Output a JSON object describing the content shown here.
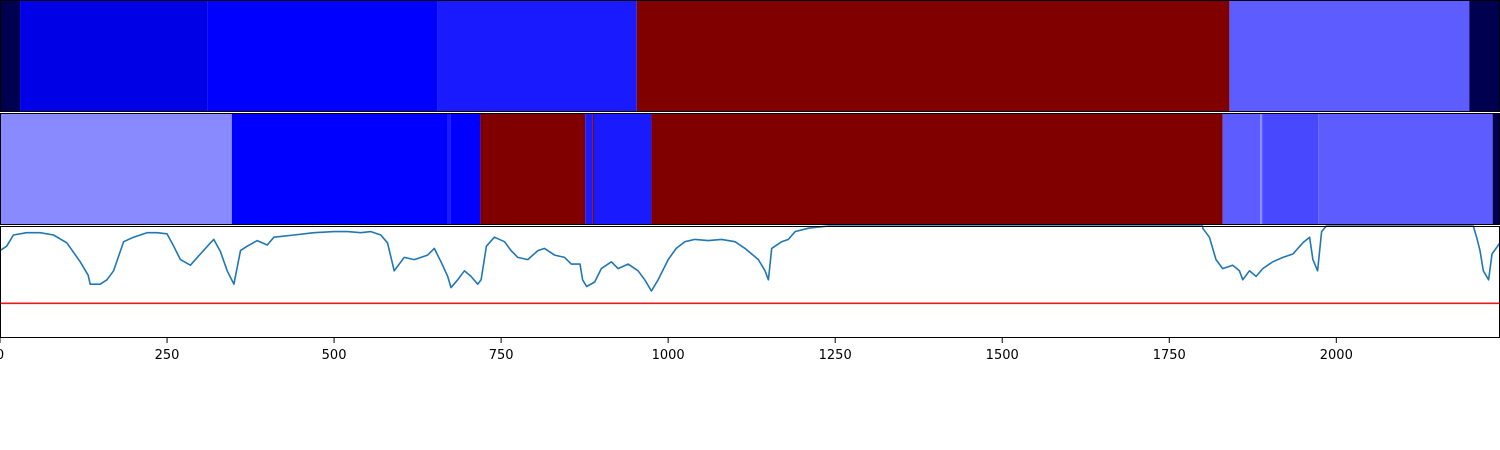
{
  "chart_data": {
    "type": "segmentation-timeline",
    "xlim": [
      0,
      2245
    ],
    "x_ticks": [
      0,
      250,
      500,
      750,
      1000,
      1250,
      1500,
      1750,
      2000
    ],
    "tracks": [
      {
        "segments": [
          {
            "start": 0,
            "end": 30,
            "color": "#000050"
          },
          {
            "start": 30,
            "end": 310,
            "color": "#0000e6"
          },
          {
            "start": 310,
            "end": 655,
            "color": "#0000ff"
          },
          {
            "start": 655,
            "end": 953,
            "color": "#1a1aff"
          },
          {
            "start": 953,
            "end": 1840,
            "color": "#800000"
          },
          {
            "start": 1840,
            "end": 2199,
            "color": "#5c5cff"
          },
          {
            "start": 2199,
            "end": 2245,
            "color": "#000050"
          }
        ]
      },
      {
        "segments": [
          {
            "start": 0,
            "end": 347,
            "color": "#8a8aff"
          },
          {
            "start": 347,
            "end": 669,
            "color": "#0000ff"
          },
          {
            "start": 669,
            "end": 674,
            "color": "#1a1aff"
          },
          {
            "start": 674,
            "end": 719,
            "color": "#0000ff"
          },
          {
            "start": 719,
            "end": 876,
            "color": "#800000"
          },
          {
            "start": 876,
            "end": 887,
            "color": "#1a1aff"
          },
          {
            "start": 887,
            "end": 889,
            "color": "#800000"
          },
          {
            "start": 889,
            "end": 975,
            "color": "#1a1aff"
          },
          {
            "start": 975,
            "end": 1830,
            "color": "#800000"
          },
          {
            "start": 1830,
            "end": 1886,
            "color": "#5c5cff"
          },
          {
            "start": 1886,
            "end": 1889,
            "color": "#8a8aff"
          },
          {
            "start": 1889,
            "end": 1973,
            "color": "#4848ff"
          },
          {
            "start": 1973,
            "end": 2234,
            "color": "#5c5cff"
          },
          {
            "start": 2234,
            "end": 2245,
            "color": "#000050"
          }
        ]
      }
    ],
    "line_panel": {
      "ylim": [
        0,
        1
      ],
      "threshold": 0.31,
      "threshold_color": "#e8191b",
      "line_color": "#1f77b4",
      "series": [
        [
          0,
          0.78
        ],
        [
          10,
          0.82
        ],
        [
          20,
          0.92
        ],
        [
          40,
          0.94
        ],
        [
          60,
          0.94
        ],
        [
          80,
          0.92
        ],
        [
          100,
          0.85
        ],
        [
          120,
          0.68
        ],
        [
          132,
          0.56
        ],
        [
          135,
          0.48
        ],
        [
          150,
          0.48
        ],
        [
          160,
          0.52
        ],
        [
          170,
          0.6
        ],
        [
          185,
          0.86
        ],
        [
          200,
          0.9
        ],
        [
          220,
          0.94
        ],
        [
          235,
          0.94
        ],
        [
          250,
          0.93
        ],
        [
          260,
          0.82
        ],
        [
          270,
          0.7
        ],
        [
          285,
          0.65
        ],
        [
          300,
          0.75
        ],
        [
          315,
          0.85
        ],
        [
          320,
          0.88
        ],
        [
          330,
          0.77
        ],
        [
          340,
          0.6
        ],
        [
          350,
          0.48
        ],
        [
          360,
          0.78
        ],
        [
          370,
          0.82
        ],
        [
          385,
          0.87
        ],
        [
          400,
          0.83
        ],
        [
          410,
          0.9
        ],
        [
          440,
          0.92
        ],
        [
          470,
          0.94
        ],
        [
          500,
          0.95
        ],
        [
          520,
          0.95
        ],
        [
          540,
          0.94
        ],
        [
          555,
          0.95
        ],
        [
          570,
          0.92
        ],
        [
          580,
          0.85
        ],
        [
          590,
          0.6
        ],
        [
          605,
          0.72
        ],
        [
          620,
          0.7
        ],
        [
          640,
          0.74
        ],
        [
          650,
          0.8
        ],
        [
          660,
          0.68
        ],
        [
          670,
          0.55
        ],
        [
          675,
          0.45
        ],
        [
          685,
          0.52
        ],
        [
          695,
          0.6
        ],
        [
          705,
          0.55
        ],
        [
          715,
          0.48
        ],
        [
          720,
          0.52
        ],
        [
          728,
          0.82
        ],
        [
          740,
          0.9
        ],
        [
          755,
          0.86
        ],
        [
          765,
          0.78
        ],
        [
          775,
          0.72
        ],
        [
          790,
          0.7
        ],
        [
          805,
          0.78
        ],
        [
          815,
          0.8
        ],
        [
          830,
          0.74
        ],
        [
          845,
          0.72
        ],
        [
          855,
          0.66
        ],
        [
          868,
          0.66
        ],
        [
          872,
          0.52
        ],
        [
          878,
          0.46
        ],
        [
          890,
          0.5
        ],
        [
          900,
          0.62
        ],
        [
          915,
          0.68
        ],
        [
          925,
          0.62
        ],
        [
          940,
          0.66
        ],
        [
          955,
          0.6
        ],
        [
          965,
          0.52
        ],
        [
          975,
          0.42
        ],
        [
          985,
          0.52
        ],
        [
          1000,
          0.7
        ],
        [
          1012,
          0.8
        ],
        [
          1025,
          0.86
        ],
        [
          1040,
          0.88
        ],
        [
          1060,
          0.87
        ],
        [
          1080,
          0.88
        ],
        [
          1100,
          0.86
        ],
        [
          1115,
          0.8
        ],
        [
          1125,
          0.75
        ],
        [
          1135,
          0.7
        ],
        [
          1145,
          0.6
        ],
        [
          1150,
          0.52
        ],
        [
          1155,
          0.8
        ],
        [
          1170,
          0.86
        ],
        [
          1180,
          0.88
        ],
        [
          1190,
          0.95
        ],
        [
          1210,
          0.98
        ],
        [
          1240,
          1.0
        ],
        [
          1500,
          1.0
        ],
        [
          1750,
          1.0
        ],
        [
          1800,
          1.0
        ],
        [
          1800,
          0.98
        ],
        [
          1810,
          0.9
        ],
        [
          1820,
          0.7
        ],
        [
          1830,
          0.62
        ],
        [
          1845,
          0.65
        ],
        [
          1855,
          0.6
        ],
        [
          1860,
          0.52
        ],
        [
          1870,
          0.6
        ],
        [
          1880,
          0.55
        ],
        [
          1890,
          0.62
        ],
        [
          1905,
          0.68
        ],
        [
          1920,
          0.72
        ],
        [
          1935,
          0.75
        ],
        [
          1950,
          0.85
        ],
        [
          1960,
          0.9
        ],
        [
          1965,
          0.7
        ],
        [
          1972,
          0.6
        ],
        [
          1978,
          0.95
        ],
        [
          1985,
          1.0
        ],
        [
          2205,
          1.0
        ],
        [
          2210,
          0.9
        ],
        [
          2215,
          0.78
        ],
        [
          2220,
          0.6
        ],
        [
          2228,
          0.52
        ],
        [
          2233,
          0.75
        ],
        [
          2245,
          0.85
        ]
      ]
    }
  }
}
